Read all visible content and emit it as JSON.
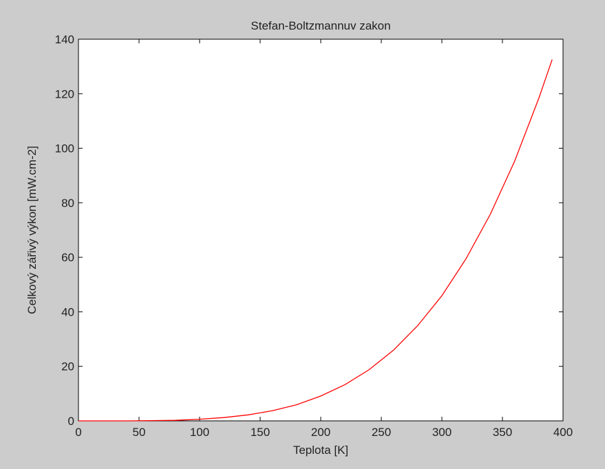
{
  "chart_data": {
    "type": "line",
    "title": "Stefan-Boltzmannuv zakon",
    "xlabel": "Teplota [K]",
    "ylabel": "Celkový zářivý výkon [mW.cm-2]",
    "xlim": [
      0,
      400
    ],
    "ylim": [
      0,
      140
    ],
    "xticks": [
      0,
      50,
      100,
      150,
      200,
      250,
      300,
      350,
      400
    ],
    "yticks": [
      0,
      20,
      40,
      60,
      80,
      100,
      120,
      140
    ],
    "grid": false,
    "background": "#cccccc",
    "plot_background": "#ffffff",
    "series": [
      {
        "color": "#ff0000",
        "x": [
          0,
          20,
          40,
          60,
          80,
          100,
          120,
          140,
          160,
          180,
          200,
          220,
          240,
          260,
          280,
          300,
          320,
          340,
          360,
          380,
          391
        ],
        "y": [
          0,
          0,
          0,
          0.1,
          0.2,
          0.6,
          1.2,
          2.2,
          3.7,
          5.9,
          9.1,
          13.3,
          18.8,
          25.9,
          34.9,
          45.9,
          59.5,
          75.8,
          95.2,
          118.3,
          132.5
        ]
      }
    ]
  }
}
